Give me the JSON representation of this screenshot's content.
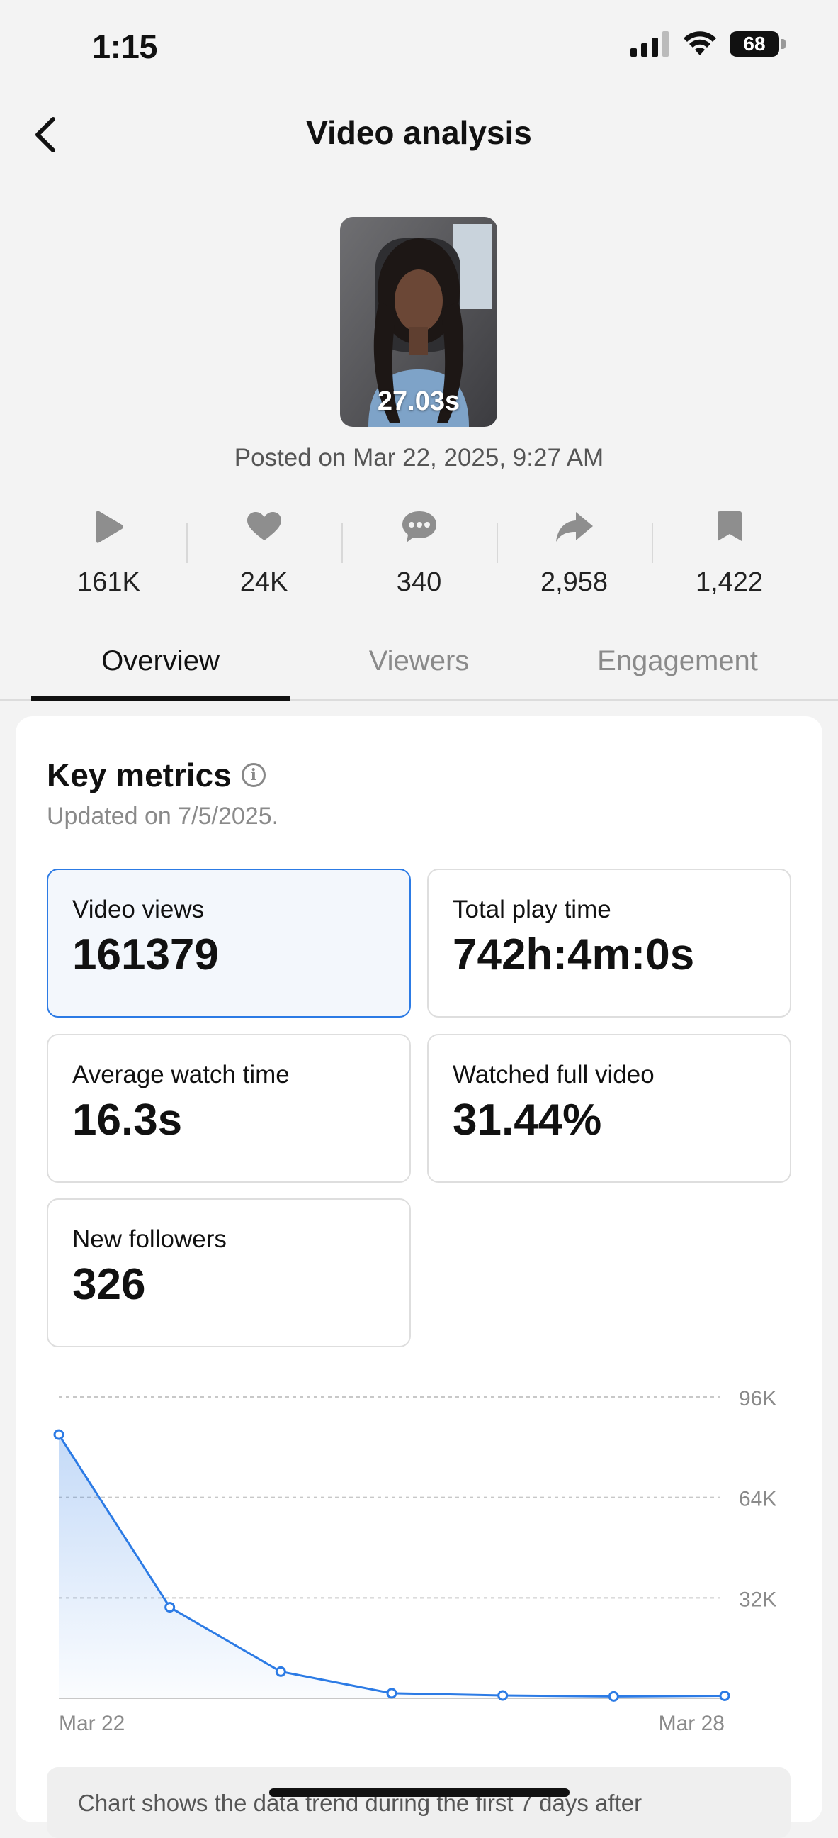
{
  "status_bar": {
    "time": "1:15",
    "battery": "68"
  },
  "header": {
    "title": "Video analysis"
  },
  "video": {
    "duration": "27.03s",
    "posted": "Posted on Mar 22, 2025, 9:27 AM"
  },
  "stats": [
    {
      "icon": "play-icon",
      "value": "161K"
    },
    {
      "icon": "heart-icon",
      "value": "24K"
    },
    {
      "icon": "comment-icon",
      "value": "340"
    },
    {
      "icon": "share-icon",
      "value": "2,958"
    },
    {
      "icon": "bookmark-icon",
      "value": "1,422"
    }
  ],
  "tabs": [
    {
      "label": "Overview",
      "active": true
    },
    {
      "label": "Viewers",
      "active": false
    },
    {
      "label": "Engagement",
      "active": false
    }
  ],
  "key_metrics": {
    "title": "Key metrics",
    "updated": "Updated on 7/5/2025.",
    "cards": [
      {
        "label": "Video views",
        "value": "161379",
        "selected": true
      },
      {
        "label": "Total play time",
        "value": "742h:4m:0s",
        "selected": false
      },
      {
        "label": "Average watch time",
        "value": "16.3s",
        "selected": false
      },
      {
        "label": "Watched full video",
        "value": "31.44%",
        "selected": false
      },
      {
        "label": "New followers",
        "value": "326",
        "selected": false
      }
    ]
  },
  "chart_data": {
    "type": "area",
    "x": [
      "Mar 22",
      "Mar 23",
      "Mar 24",
      "Mar 25",
      "Mar 26",
      "Mar 27",
      "Mar 28"
    ],
    "x_tick_labels": [
      "Mar 22",
      "Mar 28"
    ],
    "series": [
      {
        "values": [
          84000,
          29000,
          8500,
          1600,
          900,
          600,
          800
        ]
      }
    ],
    "y_ticks": [
      "96K",
      "64K",
      "32K"
    ],
    "ylim": [
      0,
      96000
    ],
    "grid": true,
    "color": "#2c7be5"
  },
  "chart_note": "Chart shows the data trend during the first 7 days after"
}
